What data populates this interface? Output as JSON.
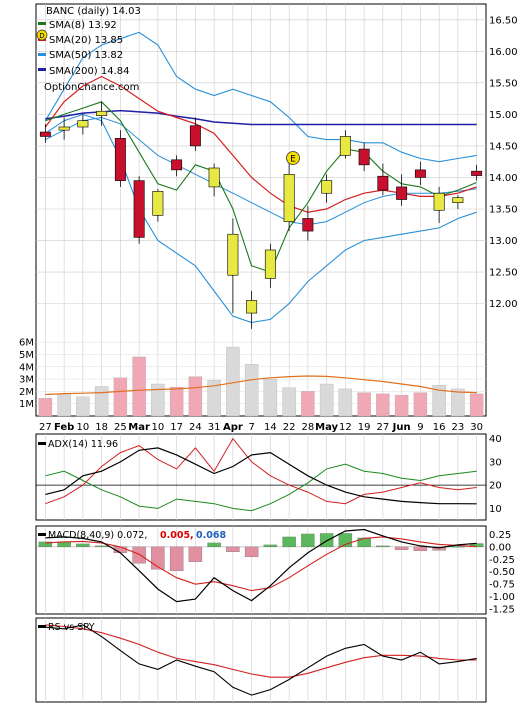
{
  "chart_data": {
    "type": "candlestick",
    "ticker": "BANC",
    "title": "BANC (daily) 14.03",
    "watermark": "OptionChance.com",
    "x_labels": [
      "27",
      "Feb",
      "10",
      "18",
      "25",
      "Mar",
      "10",
      "17",
      "24",
      "31",
      "Apr",
      "7",
      "14",
      "22",
      "28",
      "May",
      "12",
      "19",
      "27",
      "Jun",
      "9",
      "16",
      "23",
      "30"
    ],
    "price_axis": {
      "ticks": [
        "16.50",
        "16.00",
        "15.50",
        "15.00",
        "14.50",
        "14.00",
        "13.50",
        "13.00",
        "12.50",
        "12.00"
      ],
      "ylim": [
        11.55,
        16.75
      ]
    },
    "volume_axis": {
      "ticks": [
        "6M",
        "5M",
        "4M",
        "3M",
        "2M",
        "1M"
      ],
      "ylim": [
        0,
        6.5
      ]
    },
    "legend": [
      {
        "label": "SMA(8) 13.92",
        "color": "#1a7a1a"
      },
      {
        "label": "SMA(20) 13.85",
        "color": "#d42020"
      },
      {
        "label": "SMA(50) 13.82",
        "color": "#2a90d8"
      },
      {
        "label": "SMA(200) 14.84",
        "color": "#1f1fa8"
      }
    ],
    "colors": {
      "up": "#e8e842",
      "down": "#c8102e",
      "volume_up": "#d9d9d9",
      "volume_down": "#f0a8b4",
      "vol_avg": "#e07020",
      "bollinger": "#2a90d8",
      "sma8": "#1a7a1a",
      "sma20": "#d42020",
      "sma200": "#1f1fa8"
    },
    "sma200": [
      14.93,
      14.97,
      15.02,
      15.04,
      15.06,
      15.04,
      15.02,
      14.97,
      14.93,
      14.88,
      14.86,
      14.84,
      14.84,
      14.84,
      14.84,
      14.84,
      14.84,
      14.84,
      14.84,
      14.84,
      14.84,
      14.84,
      14.84,
      14.84
    ],
    "sma20": [
      14.8,
      15.2,
      15.45,
      15.6,
      15.45,
      15.25,
      15.05,
      14.95,
      14.85,
      14.7,
      14.35,
      14.0,
      13.75,
      13.55,
      13.45,
      13.5,
      13.65,
      13.75,
      13.8,
      13.75,
      13.7,
      13.7,
      13.75,
      13.85
    ],
    "sma50": [
      14.6,
      14.75,
      14.9,
      14.95,
      14.85,
      14.6,
      14.35,
      14.2,
      14.05,
      13.9,
      13.75,
      13.6,
      13.45,
      13.3,
      13.25,
      13.3,
      13.45,
      13.6,
      13.7,
      13.75,
      13.75,
      13.75,
      13.78,
      13.82
    ],
    "bollinger_upper": [
      14.9,
      15.4,
      15.9,
      16.1,
      16.2,
      16.3,
      16.1,
      15.6,
      15.4,
      15.3,
      15.4,
      15.3,
      15.2,
      14.95,
      14.65,
      14.6,
      14.6,
      14.55,
      14.55,
      14.4,
      14.3,
      14.25,
      14.3,
      14.35
    ],
    "bollinger_lower": [
      14.7,
      14.9,
      15.0,
      14.9,
      14.3,
      13.5,
      13.0,
      12.8,
      12.6,
      12.2,
      11.8,
      11.7,
      11.75,
      12.0,
      12.35,
      12.6,
      12.85,
      13.0,
      13.05,
      13.1,
      13.15,
      13.2,
      13.35,
      13.45
    ],
    "sma8": [
      14.9,
      15.0,
      15.1,
      15.2,
      14.9,
      14.4,
      13.9,
      13.8,
      14.2,
      14.1,
      13.5,
      12.6,
      12.5,
      13.2,
      13.6,
      14.1,
      14.45,
      14.4,
      14.1,
      13.9,
      13.85,
      13.7,
      13.8,
      13.92
    ],
    "candles": [
      {
        "o": 14.72,
        "h": 14.85,
        "l": 14.55,
        "c": 14.65
      },
      {
        "o": 14.75,
        "h": 14.95,
        "l": 14.6,
        "c": 14.8
      },
      {
        "o": 14.8,
        "h": 15.0,
        "l": 14.68,
        "c": 14.9
      },
      {
        "o": 14.98,
        "h": 15.2,
        "l": 14.82,
        "c": 15.05
      },
      {
        "o": 14.62,
        "h": 14.75,
        "l": 13.85,
        "c": 13.95
      },
      {
        "o": 13.95,
        "h": 14.02,
        "l": 12.95,
        "c": 13.05
      },
      {
        "o": 13.4,
        "h": 13.82,
        "l": 13.3,
        "c": 13.78
      },
      {
        "o": 14.28,
        "h": 14.35,
        "l": 14.02,
        "c": 14.12
      },
      {
        "o": 14.82,
        "h": 14.95,
        "l": 14.42,
        "c": 14.5
      },
      {
        "o": 13.85,
        "h": 14.22,
        "l": 13.7,
        "c": 14.15
      },
      {
        "o": 12.45,
        "h": 13.35,
        "l": 11.85,
        "c": 13.1
      },
      {
        "o": 11.85,
        "h": 12.2,
        "l": 11.6,
        "c": 12.05
      },
      {
        "o": 12.4,
        "h": 12.95,
        "l": 12.25,
        "c": 12.85
      },
      {
        "o": 13.3,
        "h": 14.25,
        "l": 13.15,
        "c": 14.05
      },
      {
        "o": 13.35,
        "h": 13.55,
        "l": 13.0,
        "c": 13.15
      },
      {
        "o": 13.75,
        "h": 14.05,
        "l": 13.6,
        "c": 13.95
      },
      {
        "o": 14.35,
        "h": 14.75,
        "l": 14.3,
        "c": 14.65
      },
      {
        "o": 14.45,
        "h": 14.55,
        "l": 14.1,
        "c": 14.2
      },
      {
        "o": 14.02,
        "h": 14.22,
        "l": 13.72,
        "c": 13.8
      },
      {
        "o": 13.85,
        "h": 14.05,
        "l": 13.55,
        "c": 13.65
      },
      {
        "o": 14.12,
        "h": 14.25,
        "l": 13.88,
        "c": 14.0
      },
      {
        "o": 13.48,
        "h": 13.85,
        "l": 13.28,
        "c": 13.75
      },
      {
        "o": 13.6,
        "h": 13.72,
        "l": 13.5,
        "c": 13.68
      },
      {
        "o": 14.1,
        "h": 14.2,
        "l": 13.95,
        "c": 14.03
      }
    ],
    "volume": [
      1.45,
      1.8,
      1.55,
      2.4,
      3.1,
      4.8,
      2.6,
      2.35,
      3.2,
      2.9,
      5.6,
      4.2,
      3.0,
      2.3,
      2.0,
      2.6,
      2.2,
      1.9,
      1.8,
      1.7,
      1.9,
      2.5,
      2.2,
      1.8
    ],
    "volume_avg": [
      1.75,
      1.82,
      1.85,
      1.9,
      2.0,
      2.1,
      2.15,
      2.2,
      2.3,
      2.45,
      2.7,
      2.95,
      3.1,
      3.2,
      3.25,
      3.22,
      3.1,
      2.95,
      2.8,
      2.6,
      2.4,
      2.1,
      1.95,
      1.9
    ],
    "adx": {
      "label": "ADX(14) 11.96",
      "ticks": [
        "40",
        "30",
        "20",
        "10"
      ],
      "ylim": [
        5,
        42
      ],
      "adx": [
        16,
        18,
        24,
        26,
        30,
        35,
        36,
        33,
        29,
        25,
        28,
        33,
        34,
        29,
        24,
        20,
        17,
        15,
        14,
        13,
        12.5,
        12,
        12,
        11.96
      ],
      "plus_di": [
        24,
        26,
        22,
        18,
        15,
        11,
        10,
        14,
        13,
        12,
        10,
        9,
        12,
        16,
        21,
        27,
        29,
        26,
        25,
        23,
        22,
        24,
        25,
        26
      ],
      "minus_di": [
        12,
        15,
        20,
        28,
        34,
        37,
        31,
        27,
        36,
        26,
        40,
        30,
        24,
        20,
        17,
        13,
        12,
        16,
        17,
        19,
        21,
        19,
        18,
        19
      ]
    },
    "macd": {
      "label": "MACD(8,40,9) 0.072,",
      "signal_label": "0.005,",
      "hist_label": "0.068",
      "ticks": [
        "0.25",
        "0.00",
        "-0.25",
        "-0.50",
        "-0.75",
        "-1.00",
        "-1.25"
      ],
      "ylim": [
        -1.35,
        0.42
      ],
      "macd": [
        0.18,
        0.2,
        0.17,
        0.1,
        -0.12,
        -0.48,
        -0.85,
        -1.1,
        -1.05,
        -0.62,
        -0.88,
        -1.08,
        -0.78,
        -0.42,
        -0.12,
        0.12,
        0.32,
        0.35,
        0.22,
        0.1,
        0.02,
        -0.02,
        0.04,
        0.072
      ],
      "signal": [
        0.08,
        0.1,
        0.11,
        0.08,
        0.0,
        -0.15,
        -0.4,
        -0.62,
        -0.75,
        -0.7,
        -0.78,
        -0.88,
        -0.82,
        -0.62,
        -0.38,
        -0.15,
        0.05,
        0.17,
        0.2,
        0.16,
        0.1,
        0.05,
        0.03,
        0.005
      ],
      "hist": [
        0.1,
        0.1,
        0.06,
        0.02,
        -0.12,
        -0.33,
        -0.45,
        -0.48,
        -0.3,
        0.08,
        -0.1,
        -0.2,
        0.04,
        0.2,
        0.26,
        0.27,
        0.27,
        0.18,
        0.02,
        -0.06,
        -0.08,
        -0.07,
        0.01,
        0.068
      ],
      "colors": {
        "macd": "#000000",
        "signal": "#d42020",
        "hist_pos": "#5cb85c",
        "hist_neg": "#e090a0",
        "signal_label": "#e00000",
        "hist_label": "#1f5fbf"
      }
    },
    "rs": {
      "label": "RS vs SPY",
      "rs": [
        0.92,
        0.9,
        0.95,
        0.8,
        0.62,
        0.45,
        0.38,
        0.5,
        0.42,
        0.35,
        0.15,
        0.05,
        0.12,
        0.25,
        0.4,
        0.55,
        0.65,
        0.7,
        0.55,
        0.5,
        0.6,
        0.45,
        0.48,
        0.52
      ],
      "ma": [
        0.95,
        0.93,
        0.9,
        0.85,
        0.78,
        0.7,
        0.6,
        0.52,
        0.48,
        0.44,
        0.38,
        0.32,
        0.28,
        0.28,
        0.33,
        0.4,
        0.47,
        0.53,
        0.56,
        0.56,
        0.55,
        0.52,
        0.5,
        0.5
      ]
    }
  }
}
